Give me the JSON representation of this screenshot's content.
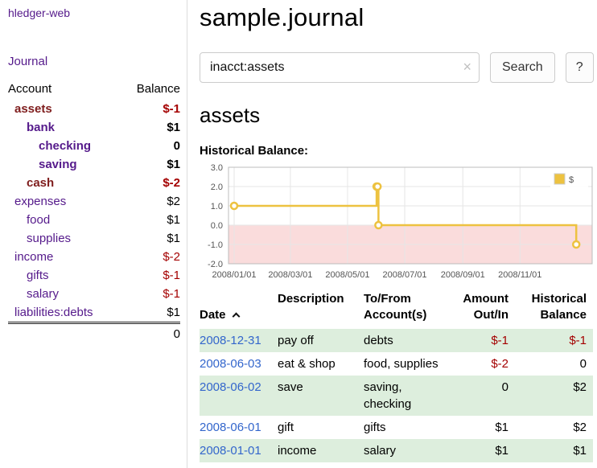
{
  "colors": {
    "link_purple": "#551a8b",
    "link_maroon": "#7f1d1d",
    "negative": "#a40000",
    "date_link": "#3366cc",
    "row_green": "#ddeedd",
    "chart_gold": "#edc240",
    "chart_negative_bg": "#fadcdc",
    "chart_grid": "#e6e6e6",
    "chart_border": "#bcbcbc",
    "chart_tick_text": "#545454"
  },
  "sidebar": {
    "app_title": "hledger-web",
    "journal_link": "Journal",
    "accounts": {
      "header_account": "Account",
      "header_balance": "Balance",
      "rows": [
        {
          "account": "assets",
          "balance": "$-1",
          "level": 1,
          "bold": true,
          "negative": true,
          "maroon": true
        },
        {
          "account": "bank",
          "balance": "$1",
          "level": 2,
          "bold": true,
          "negative": false,
          "maroon": false
        },
        {
          "account": "checking",
          "balance": "0",
          "level": 3,
          "bold": true,
          "negative": false,
          "maroon": false
        },
        {
          "account": "saving",
          "balance": "$1",
          "level": 3,
          "bold": true,
          "negative": false,
          "maroon": false
        },
        {
          "account": "cash",
          "balance": "$-2",
          "level": 2,
          "bold": true,
          "negative": true,
          "maroon": true
        },
        {
          "account": "expenses",
          "balance": "$2",
          "level": 1,
          "bold": false,
          "negative": false,
          "maroon": false
        },
        {
          "account": "food",
          "balance": "$1",
          "level": 2,
          "bold": false,
          "negative": false,
          "maroon": false
        },
        {
          "account": "supplies",
          "balance": "$1",
          "level": 2,
          "bold": false,
          "negative": false,
          "maroon": false
        },
        {
          "account": "income",
          "balance": "$-2",
          "level": 1,
          "bold": false,
          "negative": true,
          "maroon": false
        },
        {
          "account": "gifts",
          "balance": "$-1",
          "level": 2,
          "bold": false,
          "negative": true,
          "maroon": false
        },
        {
          "account": "salary",
          "balance": "$-1",
          "level": 2,
          "bold": false,
          "negative": true,
          "maroon": false
        },
        {
          "account": "liabilities:debts",
          "balance": "$1",
          "level": 1,
          "bold": false,
          "negative": false,
          "maroon": false
        }
      ],
      "total": "0"
    }
  },
  "main": {
    "title": "sample.journal",
    "search": {
      "value": "inacct:assets",
      "clear_icon": "×",
      "button": "Search",
      "help_button": "?"
    },
    "account_heading": "assets",
    "chart_title": "Historical Balance:"
  },
  "chart_data": {
    "type": "line",
    "title": "Historical Balance:",
    "series": [
      {
        "name": "$",
        "color": "#edc240",
        "step": true,
        "points": [
          {
            "date": "2008-01-01",
            "value": 1
          },
          {
            "date": "2008-06-01",
            "value": 2
          },
          {
            "date": "2008-06-02",
            "value": 2
          },
          {
            "date": "2008-06-03",
            "value": 0
          },
          {
            "date": "2008-12-31",
            "value": -1
          }
        ]
      }
    ],
    "ylim": [
      -2,
      3
    ],
    "y_ticks": [
      3.0,
      2.0,
      1.0,
      0.0,
      -1.0,
      -2.0
    ],
    "x_ticks": [
      "2008/01/01",
      "2008/03/01",
      "2008/05/01",
      "2008/07/01",
      "2008/09/01",
      "2008/11/01"
    ],
    "xlim_days": [
      -6,
      382
    ],
    "grid": true,
    "legend_position": "top-right",
    "negative_region_shaded": true
  },
  "register": {
    "headers": {
      "date": "Date",
      "description": "Description",
      "accounts": "To/From\nAccount(s)",
      "amount": "Amount\nOut/In",
      "balance": "Historical\nBalance"
    },
    "rows": [
      {
        "date": "2008-12-31",
        "description": "pay off",
        "accounts": "debts",
        "amount": "$-1",
        "amount_negative": true,
        "balance": "$-1",
        "balance_negative": true
      },
      {
        "date": "2008-06-03",
        "description": "eat & shop",
        "accounts": "food, supplies",
        "amount": "$-2",
        "amount_negative": true,
        "balance": "0",
        "balance_negative": false
      },
      {
        "date": "2008-06-02",
        "description": "save",
        "accounts": "saving, checking",
        "amount": "0",
        "amount_negative": false,
        "balance": "$2",
        "balance_negative": false
      },
      {
        "date": "2008-06-01",
        "description": "gift",
        "accounts": "gifts",
        "amount": "$1",
        "amount_negative": false,
        "balance": "$2",
        "balance_negative": false
      },
      {
        "date": "2008-01-01",
        "description": "income",
        "accounts": "salary",
        "amount": "$1",
        "amount_negative": false,
        "balance": "$1",
        "balance_negative": false
      }
    ]
  }
}
